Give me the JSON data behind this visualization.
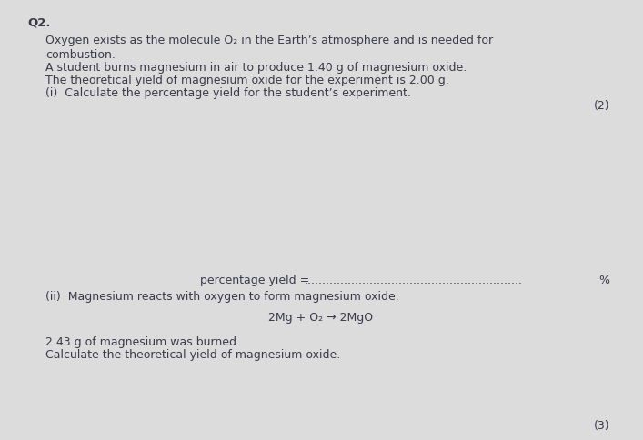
{
  "background_color": "#dcdcdc",
  "text_color": "#3a3a4a",
  "question_number": "Q2.",
  "intro_line1": "Oxygen exists as the molecule O₂ in the Earth’s atmosphere and is needed for",
  "intro_line2": "combustion.",
  "line3": "A student burns magnesium in air to produce 1.40 g of magnesium oxide.",
  "line4": "The theoretical yield of magnesium oxide for the experiment is 2.00 g.",
  "line5_i": "(i)  Calculate the percentage yield for the student’s experiment.",
  "marks_i": "(2)",
  "answer_label": "percentage yield = ",
  "answer_dots": "............................................................",
  "answer_pct": "%",
  "line_ii": "(ii)  Magnesium reacts with oxygen to form magnesium oxide.",
  "equation": "2Mg + O₂ → 2MgO",
  "line_mass": "2.43 g of magnesium was burned.",
  "line_calc": "Calculate the theoretical yield of magnesium oxide.",
  "marks_ii": "(3)",
  "q2_fontsize": 9.5,
  "body_fontsize": 9.0,
  "small_fontsize": 8.5
}
